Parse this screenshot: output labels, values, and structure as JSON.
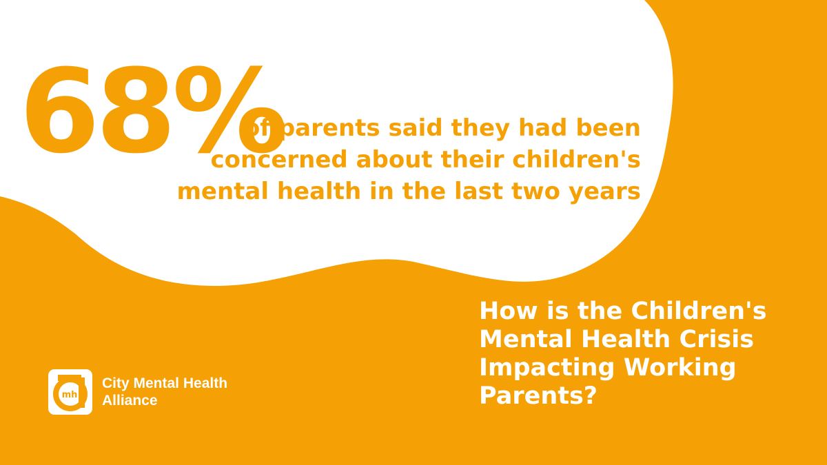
{
  "colors": {
    "background": "#f5a005",
    "blob": "#ffffff",
    "accent_text": "#f5a005",
    "headline_text": "#ffffff"
  },
  "stat": {
    "value": "68%",
    "description_lines": [
      "of parents said they had been",
      "concerned about their children's",
      "mental health in the last two years"
    ]
  },
  "headline": {
    "lines": [
      "How is the Children's",
      "Mental Health Crisis",
      "Impacting Working",
      "Parents?"
    ]
  },
  "logo": {
    "mark_text": "mh",
    "name_lines": [
      "City Mental Health",
      "Alliance"
    ]
  }
}
